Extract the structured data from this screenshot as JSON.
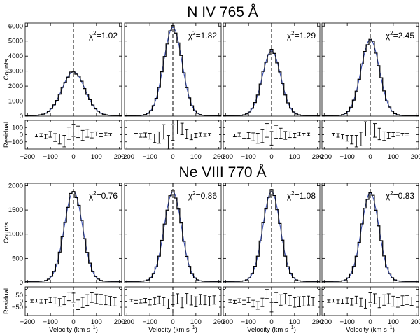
{
  "figure": {
    "velocity_label": "Velocity (km s",
    "velocity_label_sup": "−1",
    "velocity_label_close": ")",
    "counts_label": "Counts",
    "residual_label": "Residual",
    "chi_prefix": "χ",
    "chi_sup": "2",
    "chi_eq": "="
  },
  "chart_data": [
    {
      "type": "line",
      "title": "N IV 765 Å",
      "xlim": [
        -210,
        210
      ],
      "xticks": [
        -200,
        -100,
        0,
        100,
        200
      ],
      "xtick_labels": [
        "−200",
        "−100",
        "0",
        "100",
        "200"
      ],
      "ylim": [
        0,
        6200
      ],
      "yticks": [
        0,
        1000,
        2000,
        3000,
        4000,
        5000,
        6000
      ],
      "ytick_labels": [
        "0",
        "1000",
        "2000",
        "3000",
        "4000",
        "5000",
        "6000"
      ],
      "residual_ylim": [
        -200,
        200
      ],
      "residual_yticks": [
        -100,
        0,
        100
      ],
      "residual_ytick_labels": [
        "−100",
        "0",
        "100"
      ],
      "ylabel": "Counts",
      "residual_ylabel": "Residual",
      "xlabel": "",
      "panels": [
        {
          "chi2": "1.02",
          "peak": 2950,
          "center": 0,
          "sigma": 50,
          "baseline": 40,
          "residuals": [
            {
              "v": -160,
              "r": -10,
              "e": 20
            },
            {
              "v": -140,
              "r": -8,
              "e": 22
            },
            {
              "v": -120,
              "r": -25,
              "e": 30
            },
            {
              "v": -100,
              "r": 5,
              "e": 40
            },
            {
              "v": -80,
              "r": -40,
              "e": 55
            },
            {
              "v": -60,
              "r": -60,
              "e": 70
            },
            {
              "v": -40,
              "r": -90,
              "e": 80
            },
            {
              "v": -20,
              "r": 20,
              "e": 85
            },
            {
              "v": 0,
              "r": 60,
              "e": 85
            },
            {
              "v": 20,
              "r": 40,
              "e": 80
            },
            {
              "v": 40,
              "r": -10,
              "e": 70
            },
            {
              "v": 60,
              "r": 20,
              "e": 55
            },
            {
              "v": 80,
              "r": -5,
              "e": 40
            },
            {
              "v": 100,
              "r": 10,
              "e": 30
            },
            {
              "v": 120,
              "r": -5,
              "e": 25
            },
            {
              "v": 140,
              "r": 5,
              "e": 20
            },
            {
              "v": 160,
              "r": 0,
              "e": 18
            }
          ]
        },
        {
          "chi2": "1.82",
          "peak": 5900,
          "center": 0,
          "sigma": 40,
          "baseline": 40,
          "residuals": [
            {
              "v": -160,
              "r": 0,
              "e": 20
            },
            {
              "v": -140,
              "r": -10,
              "e": 25
            },
            {
              "v": -120,
              "r": -5,
              "e": 30
            },
            {
              "v": -100,
              "r": -20,
              "e": 40
            },
            {
              "v": -80,
              "r": -50,
              "e": 60
            },
            {
              "v": -60,
              "r": -40,
              "e": 80
            },
            {
              "v": -40,
              "r": 40,
              "e": 100
            },
            {
              "v": -20,
              "r": -120,
              "e": 110
            },
            {
              "v": 0,
              "r": 30,
              "e": 110
            },
            {
              "v": 20,
              "r": 110,
              "e": 100
            },
            {
              "v": 40,
              "r": 80,
              "e": 80
            },
            {
              "v": 60,
              "r": 10,
              "e": 60
            },
            {
              "v": 80,
              "r": -30,
              "e": 40
            },
            {
              "v": 100,
              "r": -10,
              "e": 30
            },
            {
              "v": 120,
              "r": 0,
              "e": 25
            },
            {
              "v": 140,
              "r": -5,
              "e": 20
            },
            {
              "v": 160,
              "r": 0,
              "e": 18
            }
          ]
        },
        {
          "chi2": "1.29",
          "peak": 4350,
          "center": 0,
          "sigma": 40,
          "baseline": 40,
          "residuals": [
            {
              "v": -160,
              "r": -10,
              "e": 20
            },
            {
              "v": -140,
              "r": 0,
              "e": 25
            },
            {
              "v": -120,
              "r": -20,
              "e": 30
            },
            {
              "v": -100,
              "r": -10,
              "e": 40
            },
            {
              "v": -80,
              "r": -30,
              "e": 55
            },
            {
              "v": -60,
              "r": -50,
              "e": 70
            },
            {
              "v": -40,
              "r": -20,
              "e": 90
            },
            {
              "v": -20,
              "r": 60,
              "e": 95
            },
            {
              "v": 0,
              "r": -50,
              "e": 95
            },
            {
              "v": 20,
              "r": 40,
              "e": 90
            },
            {
              "v": 40,
              "r": 20,
              "e": 70
            },
            {
              "v": 60,
              "r": -10,
              "e": 55
            },
            {
              "v": 80,
              "r": 0,
              "e": 40
            },
            {
              "v": 100,
              "r": -10,
              "e": 30
            },
            {
              "v": 120,
              "r": 10,
              "e": 25
            },
            {
              "v": 140,
              "r": 0,
              "e": 20
            },
            {
              "v": 160,
              "r": 5,
              "e": 18
            }
          ]
        },
        {
          "chi2": "2.45",
          "peak": 5100,
          "center": 0,
          "sigma": 40,
          "baseline": 40,
          "residuals": [
            {
              "v": -160,
              "r": 0,
              "e": 20
            },
            {
              "v": -140,
              "r": -10,
              "e": 25
            },
            {
              "v": -120,
              "r": -30,
              "e": 30
            },
            {
              "v": -100,
              "r": -50,
              "e": 40
            },
            {
              "v": -80,
              "r": -70,
              "e": 60
            },
            {
              "v": -60,
              "r": -90,
              "e": 80
            },
            {
              "v": -40,
              "r": -60,
              "e": 95
            },
            {
              "v": -20,
              "r": 80,
              "e": 100
            },
            {
              "v": 0,
              "r": 110,
              "e": 100
            },
            {
              "v": 20,
              "r": 60,
              "e": 95
            },
            {
              "v": 40,
              "r": 10,
              "e": 80
            },
            {
              "v": 60,
              "r": -20,
              "e": 60
            },
            {
              "v": 80,
              "r": -10,
              "e": 40
            },
            {
              "v": 100,
              "r": 0,
              "e": 30
            },
            {
              "v": 120,
              "r": 10,
              "e": 25
            },
            {
              "v": 140,
              "r": 0,
              "e": 20
            },
            {
              "v": 160,
              "r": 0,
              "e": 18
            }
          ]
        }
      ]
    },
    {
      "type": "line",
      "title": "Ne VIII 770 Å",
      "xlim": [
        -210,
        210
      ],
      "xticks": [
        -200,
        -100,
        0,
        100,
        200
      ],
      "xtick_labels": [
        "−200",
        "−100",
        "0",
        "100",
        "200"
      ],
      "ylim": [
        0,
        2050
      ],
      "yticks": [
        0,
        500,
        1000,
        1500,
        2000
      ],
      "ytick_labels": [
        "0",
        "500",
        "1000",
        "1500",
        "2000"
      ],
      "residual_ylim": [
        -120,
        120
      ],
      "residual_yticks": [
        -50,
        0,
        50
      ],
      "residual_ytick_labels": [
        "−50",
        "0",
        "50"
      ],
      "residual_ytick_ticks_only": [
        -100,
        100
      ],
      "ylabel": "Counts",
      "residual_ylabel": "Residual",
      "xlabel": "Velocity (km s−1)",
      "panels": [
        {
          "chi2": "0.76",
          "peak": 1880,
          "center": 0,
          "sigma": 40,
          "baseline": 25,
          "residuals": [
            {
              "v": -180,
              "r": 0,
              "e": 10
            },
            {
              "v": -160,
              "r": 5,
              "e": 12
            },
            {
              "v": -140,
              "r": 0,
              "e": 15
            },
            {
              "v": -120,
              "r": -5,
              "e": 18
            },
            {
              "v": -100,
              "r": 10,
              "e": 22
            },
            {
              "v": -80,
              "r": 5,
              "e": 28
            },
            {
              "v": -60,
              "r": -10,
              "e": 32
            },
            {
              "v": -40,
              "r": 5,
              "e": 35
            },
            {
              "v": -20,
              "r": 40,
              "e": 35
            },
            {
              "v": 0,
              "r": 30,
              "e": 38
            },
            {
              "v": 20,
              "r": -30,
              "e": 40
            },
            {
              "v": 40,
              "r": -10,
              "e": 42
            },
            {
              "v": 60,
              "r": 10,
              "e": 45
            },
            {
              "v": 80,
              "r": 30,
              "e": 40
            },
            {
              "v": 100,
              "r": 20,
              "e": 40
            },
            {
              "v": 120,
              "r": 15,
              "e": 42
            },
            {
              "v": 140,
              "r": 10,
              "e": 40
            },
            {
              "v": 160,
              "r": 0,
              "e": 40
            },
            {
              "v": 180,
              "r": -5,
              "e": 35
            }
          ]
        },
        {
          "chi2": "0.86",
          "peak": 1870,
          "center": 0,
          "sigma": 38,
          "baseline": 25,
          "residuals": [
            {
              "v": -180,
              "r": 5,
              "e": 10
            },
            {
              "v": -160,
              "r": -5,
              "e": 12
            },
            {
              "v": -140,
              "r": 0,
              "e": 15
            },
            {
              "v": -120,
              "r": 5,
              "e": 18
            },
            {
              "v": -100,
              "r": -10,
              "e": 22
            },
            {
              "v": -80,
              "r": 0,
              "e": 28
            },
            {
              "v": -60,
              "r": 10,
              "e": 32
            },
            {
              "v": -40,
              "r": -5,
              "e": 35
            },
            {
              "v": -20,
              "r": -20,
              "e": 38
            },
            {
              "v": 0,
              "r": 10,
              "e": 40
            },
            {
              "v": 20,
              "r": 20,
              "e": 42
            },
            {
              "v": 40,
              "r": -10,
              "e": 44
            },
            {
              "v": 60,
              "r": 20,
              "e": 44
            },
            {
              "v": 80,
              "r": 10,
              "e": 42
            },
            {
              "v": 100,
              "r": -5,
              "e": 42
            },
            {
              "v": 120,
              "r": 15,
              "e": 42
            },
            {
              "v": 140,
              "r": 10,
              "e": 40
            },
            {
              "v": 160,
              "r": 0,
              "e": 40
            },
            {
              "v": 180,
              "r": 10,
              "e": 35
            }
          ]
        },
        {
          "chi2": "1.08",
          "peak": 1880,
          "center": 0,
          "sigma": 38,
          "baseline": 25,
          "residuals": [
            {
              "v": -180,
              "r": 0,
              "e": 10
            },
            {
              "v": -160,
              "r": -5,
              "e": 12
            },
            {
              "v": -140,
              "r": 5,
              "e": 15
            },
            {
              "v": -120,
              "r": -10,
              "e": 18
            },
            {
              "v": -100,
              "r": 10,
              "e": 22
            },
            {
              "v": -80,
              "r": -20,
              "e": 28
            },
            {
              "v": -60,
              "r": -35,
              "e": 32
            },
            {
              "v": -40,
              "r": -10,
              "e": 35
            },
            {
              "v": -20,
              "r": 60,
              "e": 38
            },
            {
              "v": 0,
              "r": -50,
              "e": 40
            },
            {
              "v": 20,
              "r": 30,
              "e": 42
            },
            {
              "v": 40,
              "r": 10,
              "e": 44
            },
            {
              "v": 60,
              "r": 20,
              "e": 44
            },
            {
              "v": 80,
              "r": 5,
              "e": 42
            },
            {
              "v": 100,
              "r": -10,
              "e": 40
            },
            {
              "v": 120,
              "r": -5,
              "e": 42
            },
            {
              "v": 140,
              "r": 0,
              "e": 40
            },
            {
              "v": 160,
              "r": 5,
              "e": 38
            },
            {
              "v": 180,
              "r": -5,
              "e": 35
            }
          ]
        },
        {
          "chi2": "0.83",
          "peak": 1850,
          "center": 0,
          "sigma": 38,
          "baseline": 25,
          "residuals": [
            {
              "v": -180,
              "r": 0,
              "e": 10
            },
            {
              "v": -160,
              "r": 5,
              "e": 12
            },
            {
              "v": -140,
              "r": -5,
              "e": 15
            },
            {
              "v": -120,
              "r": 0,
              "e": 18
            },
            {
              "v": -100,
              "r": 5,
              "e": 22
            },
            {
              "v": -80,
              "r": -5,
              "e": 28
            },
            {
              "v": -60,
              "r": 10,
              "e": 32
            },
            {
              "v": -40,
              "r": -10,
              "e": 35
            },
            {
              "v": -20,
              "r": -20,
              "e": 38
            },
            {
              "v": 0,
              "r": 30,
              "e": 40
            },
            {
              "v": 20,
              "r": 20,
              "e": 42
            },
            {
              "v": 40,
              "r": -10,
              "e": 44
            },
            {
              "v": 60,
              "r": 10,
              "e": 44
            },
            {
              "v": 80,
              "r": 20,
              "e": 42
            },
            {
              "v": 100,
              "r": 0,
              "e": 42
            },
            {
              "v": 120,
              "r": -10,
              "e": 40
            },
            {
              "v": 140,
              "r": 5,
              "e": 40
            },
            {
              "v": 160,
              "r": 10,
              "e": 38
            },
            {
              "v": 180,
              "r": 0,
              "e": 35
            }
          ]
        }
      ]
    }
  ]
}
